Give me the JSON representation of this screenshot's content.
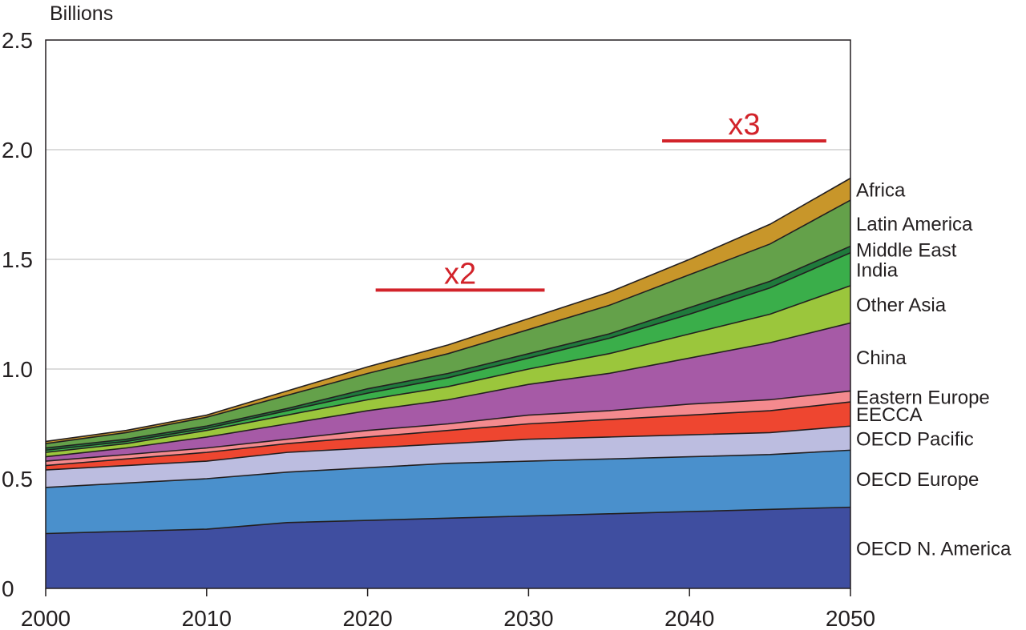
{
  "chart_data": {
    "type": "area",
    "stacked": true,
    "title": "",
    "ylabel": "Billions",
    "xlabel": "",
    "x": [
      2000,
      2005,
      2010,
      2015,
      2020,
      2025,
      2030,
      2035,
      2040,
      2045,
      2050
    ],
    "xlim": [
      2000,
      2050
    ],
    "ylim": [
      0,
      2.5
    ],
    "xticks": [
      "2000",
      "2010",
      "2020",
      "2030",
      "2040",
      "2050"
    ],
    "yticks": [
      "0",
      "0.5",
      "1.0",
      "1.5",
      "2.0",
      "2.5"
    ],
    "grid": "horizontal",
    "series": [
      {
        "name": "OECD N. America",
        "color": "#3f4ea0",
        "values": [
          0.25,
          0.26,
          0.27,
          0.3,
          0.31,
          0.32,
          0.33,
          0.34,
          0.35,
          0.36,
          0.37
        ]
      },
      {
        "name": "OECD Europe",
        "color": "#4a90cc",
        "values": [
          0.21,
          0.22,
          0.23,
          0.23,
          0.24,
          0.25,
          0.25,
          0.25,
          0.25,
          0.25,
          0.26
        ]
      },
      {
        "name": "OECD Pacific",
        "color": "#bcbde0",
        "values": [
          0.08,
          0.08,
          0.08,
          0.09,
          0.09,
          0.09,
          0.1,
          0.1,
          0.1,
          0.1,
          0.11
        ]
      },
      {
        "name": "EECCA",
        "color": "#ee4630",
        "values": [
          0.02,
          0.03,
          0.04,
          0.04,
          0.05,
          0.06,
          0.07,
          0.08,
          0.09,
          0.1,
          0.11
        ]
      },
      {
        "name": "Eastern Europe",
        "color": "#f48a8e",
        "values": [
          0.02,
          0.02,
          0.02,
          0.02,
          0.03,
          0.03,
          0.04,
          0.04,
          0.05,
          0.05,
          0.05
        ]
      },
      {
        "name": "China",
        "color": "#a65aa6",
        "values": [
          0.02,
          0.03,
          0.05,
          0.07,
          0.09,
          0.11,
          0.14,
          0.17,
          0.21,
          0.26,
          0.31
        ]
      },
      {
        "name": "Other Asia",
        "color": "#9bc63c",
        "values": [
          0.02,
          0.02,
          0.03,
          0.04,
          0.05,
          0.06,
          0.07,
          0.09,
          0.11,
          0.13,
          0.17
        ]
      },
      {
        "name": "India",
        "color": "#3aae4a",
        "values": [
          0.01,
          0.01,
          0.01,
          0.02,
          0.03,
          0.04,
          0.05,
          0.07,
          0.09,
          0.12,
          0.15
        ]
      },
      {
        "name": "Middle East",
        "color": "#1f7a3c",
        "values": [
          0.01,
          0.01,
          0.01,
          0.01,
          0.02,
          0.02,
          0.02,
          0.02,
          0.03,
          0.03,
          0.03
        ]
      },
      {
        "name": "Latin America",
        "color": "#64a14a",
        "values": [
          0.02,
          0.03,
          0.04,
          0.06,
          0.07,
          0.09,
          0.11,
          0.13,
          0.15,
          0.17,
          0.21
        ]
      },
      {
        "name": "Africa",
        "color": "#c8962a",
        "values": [
          0.01,
          0.01,
          0.01,
          0.02,
          0.03,
          0.04,
          0.05,
          0.06,
          0.07,
          0.09,
          0.1
        ]
      }
    ],
    "annotations": [
      {
        "text": "x2",
        "color": "#d2232a",
        "x_range": [
          2020.5,
          2031
        ],
        "y": 1.36
      },
      {
        "text": "x3",
        "color": "#d2232a",
        "x_range": [
          2038.3,
          2048.5
        ],
        "y": 2.04
      }
    ]
  }
}
